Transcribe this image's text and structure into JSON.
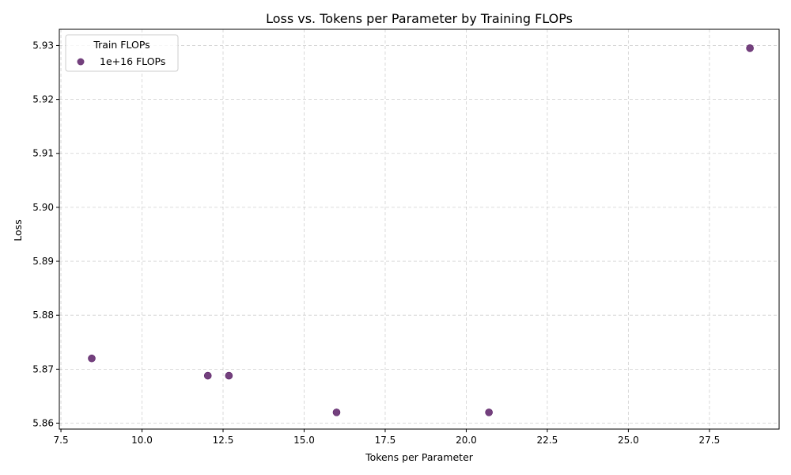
{
  "chart_data": {
    "type": "scatter",
    "title": "Loss vs. Tokens per Parameter by Training FLOPs",
    "xlabel": "Tokens per Parameter",
    "ylabel": "Loss",
    "xlim": [
      7.45,
      29.65
    ],
    "ylim": [
      5.8589,
      5.933
    ],
    "xticks": [
      7.5,
      10.0,
      12.5,
      15.0,
      17.5,
      20.0,
      22.5,
      25.0,
      27.5
    ],
    "xtick_labels": [
      "7.5",
      "10.0",
      "12.5",
      "15.0",
      "17.5",
      "20.0",
      "22.5",
      "25.0",
      "27.5"
    ],
    "yticks": [
      5.86,
      5.87,
      5.88,
      5.89,
      5.9,
      5.91,
      5.92,
      5.93
    ],
    "ytick_labels": [
      "5.86",
      "5.87",
      "5.88",
      "5.89",
      "5.90",
      "5.91",
      "5.92",
      "5.93"
    ],
    "grid": true,
    "legend_title": "Train FLOPs",
    "legend_position": "top-left",
    "series": [
      {
        "name": "1e+16 FLOPs",
        "color": "#5a1e66",
        "points": [
          {
            "x": 8.45,
            "y": 5.872
          },
          {
            "x": 12.03,
            "y": 5.8688
          },
          {
            "x": 12.68,
            "y": 5.8688
          },
          {
            "x": 16.0,
            "y": 5.862
          },
          {
            "x": 20.7,
            "y": 5.862
          },
          {
            "x": 28.75,
            "y": 5.9295
          }
        ]
      }
    ]
  }
}
